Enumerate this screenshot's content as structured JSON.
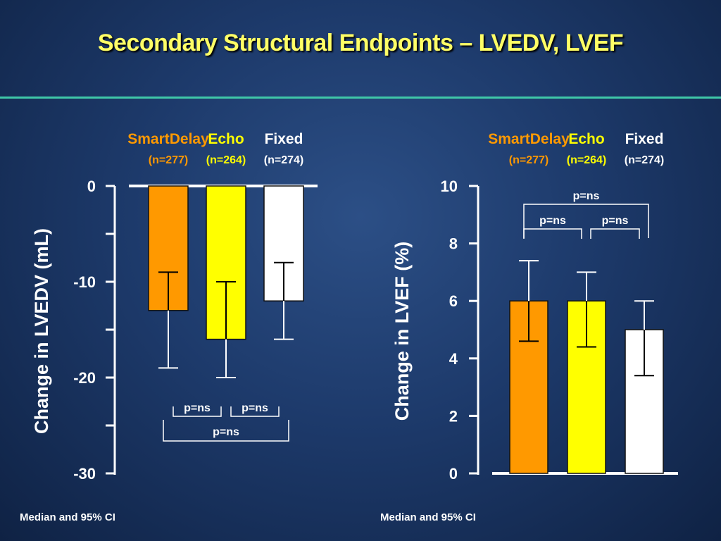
{
  "slide": {
    "title": "Secondary Structural Endpoints – LVEDV, LVEF"
  },
  "colors": {
    "smartdelay": "#ff9900",
    "echo": "#ffff00",
    "fixed": "#ffffff",
    "accent_rule": "#3fc7a8",
    "title": "#ffff66"
  },
  "chart_data": [
    {
      "type": "bar",
      "ylabel": "Change in LVEDV (mL)",
      "footnote": "Median and 95% CI",
      "ylim": [
        -30,
        0
      ],
      "yticks": [
        0,
        -10,
        -20,
        -30
      ],
      "categories": [
        "SmartDelay",
        "Echo",
        "Fixed"
      ],
      "category_n": [
        "(n=277)",
        "(n=264)",
        "(n=274)"
      ],
      "values": [
        -13,
        -16,
        -12
      ],
      "ci_low": [
        -19,
        -20,
        -16
      ],
      "ci_high": [
        -9,
        -10,
        -8
      ],
      "pvalues": [
        {
          "label": "p=ns",
          "between": [
            "SmartDelay",
            "Echo"
          ]
        },
        {
          "label": "p=ns",
          "between": [
            "Echo",
            "Fixed"
          ]
        },
        {
          "label": "p=ns",
          "between": [
            "SmartDelay",
            "Fixed"
          ]
        }
      ]
    },
    {
      "type": "bar",
      "ylabel": "Change in LVEF (%)",
      "footnote": "Median and 95% CI",
      "ylim": [
        0,
        10
      ],
      "yticks": [
        0,
        2,
        4,
        6,
        8,
        10
      ],
      "categories": [
        "SmartDelay",
        "Echo",
        "Fixed"
      ],
      "category_n": [
        "(n=277)",
        "(n=264)",
        "(n=274)"
      ],
      "values": [
        6,
        6,
        5
      ],
      "ci_low": [
        4.6,
        4.4,
        3.4
      ],
      "ci_high": [
        7.4,
        7,
        6
      ],
      "pvalues": [
        {
          "label": "p=ns",
          "between": [
            "SmartDelay",
            "Fixed"
          ]
        },
        {
          "label": "p=ns",
          "between": [
            "SmartDelay",
            "Echo"
          ]
        },
        {
          "label": "p=ns",
          "between": [
            "Echo",
            "Fixed"
          ]
        }
      ]
    }
  ]
}
